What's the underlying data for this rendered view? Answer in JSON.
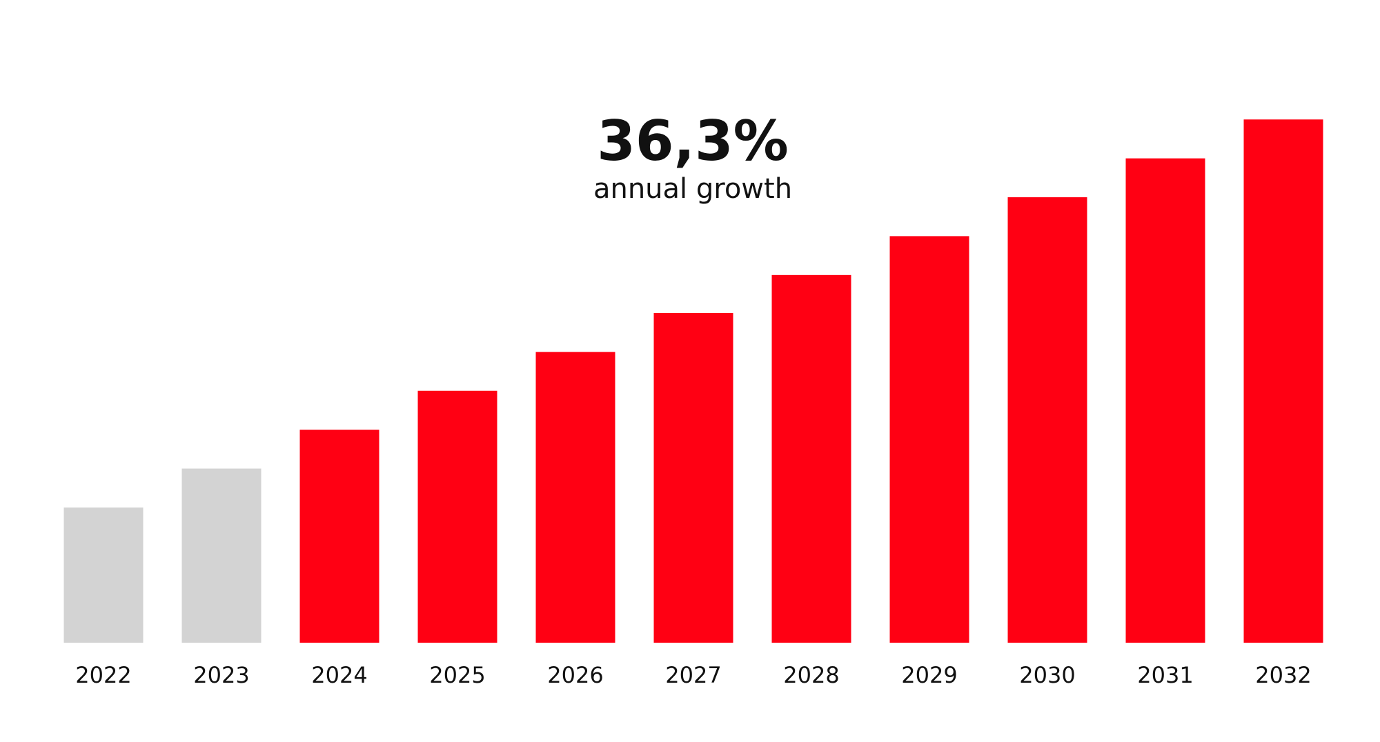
{
  "chart_data": {
    "type": "bar",
    "title": "36,3%",
    "subtitle": "annual growth",
    "categories": [
      "2022",
      "2023",
      "2024",
      "2025",
      "2026",
      "2027",
      "2028",
      "2029",
      "2030",
      "2031",
      "2032"
    ],
    "values": [
      153,
      197,
      241,
      285,
      329,
      373,
      416,
      460,
      504,
      548,
      592
    ],
    "colors": [
      "#d3d3d3",
      "#d3d3d3",
      "#ff0013",
      "#ff0013",
      "#ff0013",
      "#ff0013",
      "#ff0013",
      "#ff0013",
      "#ff0013",
      "#ff0013",
      "#ff0013"
    ],
    "ylim": [
      0,
      600
    ]
  }
}
